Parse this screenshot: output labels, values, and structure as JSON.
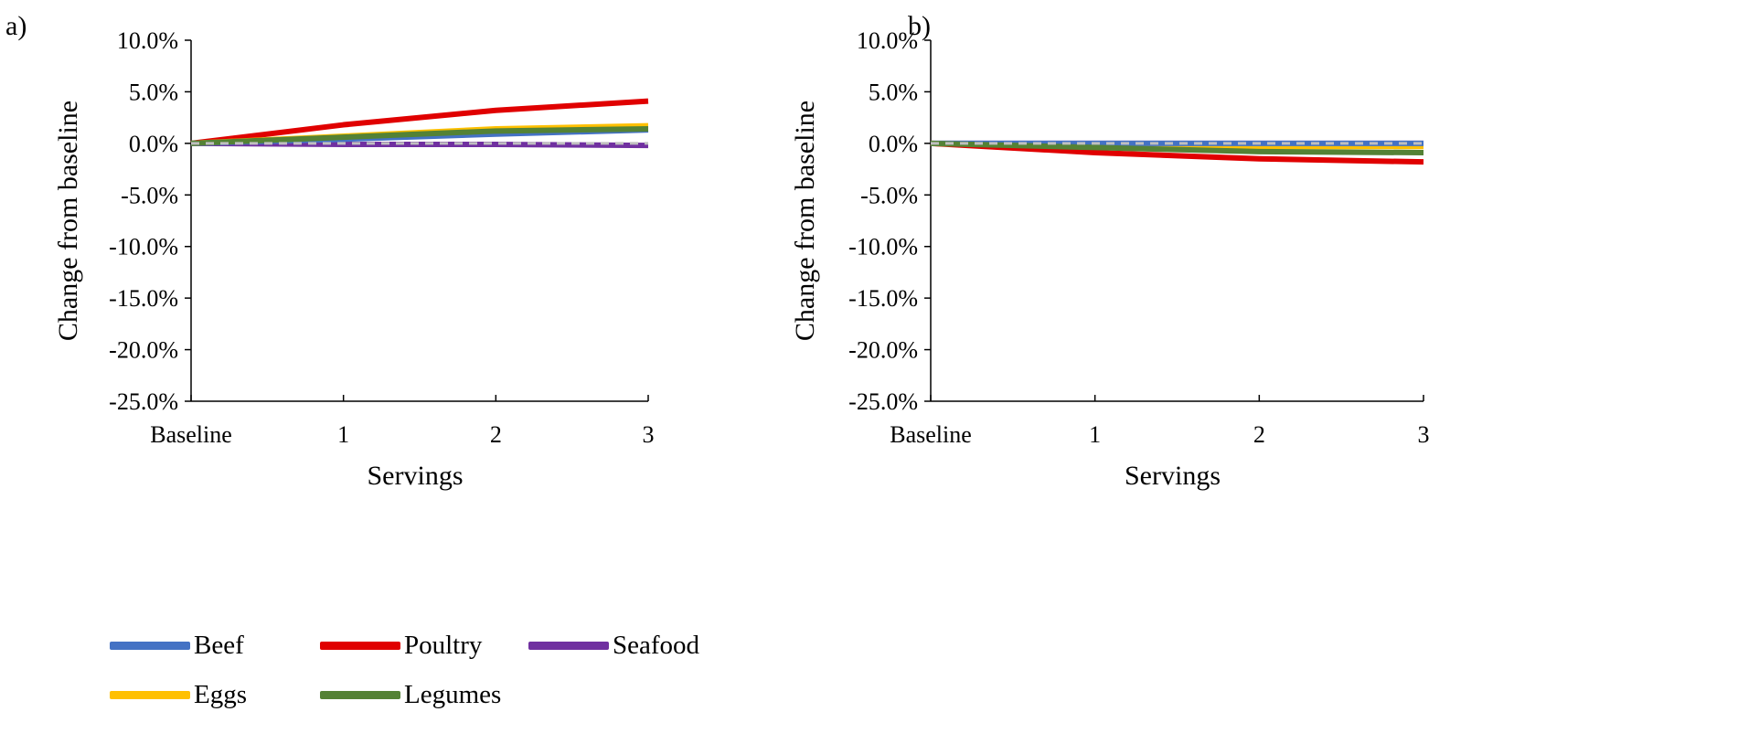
{
  "chart_data": [
    {
      "panel_label": "a)",
      "type": "line",
      "categories": [
        "Baseline",
        "1",
        "2",
        "3"
      ],
      "xlabel": "Servings",
      "ylabel": "Change from baseline",
      "ylim": [
        -25,
        10
      ],
      "yticks": [
        "10.0%",
        "5.0%",
        "0.0%",
        "-5.0%",
        "-10.0%",
        "-15.0%",
        "-20.0%",
        "-25.0%"
      ],
      "series": [
        {
          "name": "Beef",
          "values": [
            0,
            0.4,
            0.9,
            1.3
          ]
        },
        {
          "name": "Poultry",
          "values": [
            0,
            1.8,
            3.2,
            4.1
          ]
        },
        {
          "name": "Seafood",
          "values": [
            0,
            -0.1,
            -0.1,
            -0.2
          ]
        },
        {
          "name": "Eggs",
          "values": [
            0,
            0.7,
            1.4,
            1.7
          ]
        },
        {
          "name": "Legumes",
          "values": [
            0,
            0.6,
            1.2,
            1.4
          ]
        }
      ]
    },
    {
      "panel_label": "b)",
      "type": "line",
      "categories": [
        "Baseline",
        "1",
        "2",
        "3"
      ],
      "xlabel": "Servings",
      "ylabel": "Change from baseline",
      "ylim": [
        -25,
        10
      ],
      "yticks": [
        "10.0%",
        "5.0%",
        "0.0%",
        "-5.0%",
        "-10.0%",
        "-15.0%",
        "-20.0%",
        "-25.0%"
      ],
      "series": [
        {
          "name": "Beef",
          "values": [
            0,
            0,
            0,
            0
          ]
        },
        {
          "name": "Poultry",
          "values": [
            0,
            -0.9,
            -1.5,
            -1.8
          ]
        },
        {
          "name": "Seafood",
          "values": [
            0,
            0,
            0,
            0
          ]
        },
        {
          "name": "Eggs",
          "values": [
            0,
            -0.3,
            -0.3,
            -0.3
          ]
        },
        {
          "name": "Legumes",
          "values": [
            0,
            -0.4,
            -0.8,
            -0.9
          ]
        }
      ]
    }
  ],
  "legend": [
    {
      "name": "Beef",
      "color": "#4472c4"
    },
    {
      "name": "Poultry",
      "color": "#e00000"
    },
    {
      "name": "Seafood",
      "color": "#7030a0"
    },
    {
      "name": "Eggs",
      "color": "#ffc000"
    },
    {
      "name": "Legumes",
      "color": "#548235"
    }
  ],
  "colors": {
    "Beef": "#4472c4",
    "Poultry": "#e00000",
    "Seafood": "#7030a0",
    "Eggs": "#ffc000",
    "Legumes": "#548235",
    "baseline_dash": "#bfbfbf"
  }
}
